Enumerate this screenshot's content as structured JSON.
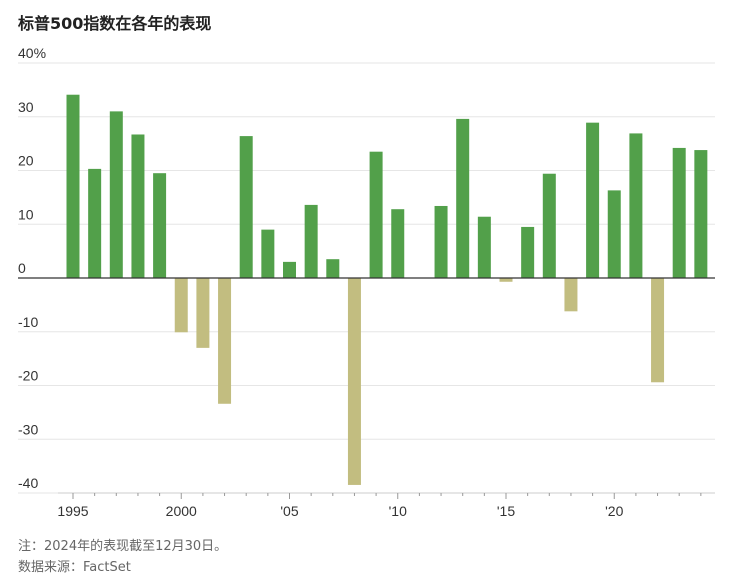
{
  "chart_data": {
    "type": "bar",
    "title": "标普500指数在各年的表现",
    "years": [
      1995,
      1996,
      1997,
      1998,
      1999,
      2000,
      2001,
      2002,
      2003,
      2004,
      2005,
      2006,
      2007,
      2008,
      2009,
      2010,
      2011,
      2012,
      2013,
      2014,
      2015,
      2016,
      2017,
      2018,
      2019,
      2020,
      2021,
      2022,
      2023,
      2024
    ],
    "values": [
      34.1,
      20.3,
      31.0,
      26.7,
      19.5,
      -10.1,
      -13.0,
      -23.4,
      26.4,
      9.0,
      3.0,
      13.6,
      3.5,
      -38.5,
      23.5,
      12.8,
      0.0,
      13.4,
      29.6,
      11.4,
      -0.7,
      9.5,
      19.4,
      -6.2,
      28.9,
      16.3,
      26.9,
      -19.4,
      24.2,
      23.8
    ],
    "y_ticks": [
      "40%",
      "30",
      "20",
      "10",
      "0",
      "-10",
      "-20",
      "-30",
      "-40"
    ],
    "y_tick_values": [
      40,
      30,
      20,
      10,
      0,
      -10,
      -20,
      -30,
      -40
    ],
    "x_ticks": [
      "1995",
      "2000",
      "'05",
      "'10",
      "'15",
      "'20"
    ],
    "x_tick_years": [
      1995,
      2000,
      2005,
      2010,
      2015,
      2020
    ],
    "ylim": [
      -40,
      40
    ],
    "grid": true,
    "colors": {
      "positive": "#52a04a",
      "negative": "#c2bd80",
      "grid": "#e6e6e6",
      "axis": "#333333"
    }
  },
  "notes": {
    "note": "注：2024年的表现截至12月30日。",
    "source": "数据来源：FactSet"
  }
}
